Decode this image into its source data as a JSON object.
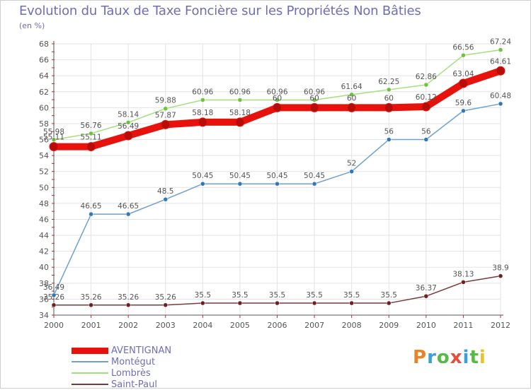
{
  "title": "Evolution du Taux de Taxe Foncière sur les Propriétés Non Bâties",
  "unit_label": "(en %)",
  "logo": {
    "letters": [
      "P",
      "r",
      "o",
      "x",
      "i",
      "t",
      "i"
    ],
    "colors": [
      "#e8832a",
      "#3aa0d8",
      "#58b848",
      "#e84c3d",
      "#3aa0d8",
      "#58b848",
      "#e8c22a"
    ]
  },
  "colors": {
    "grid": "#e3e3e3",
    "axis": "#555555",
    "tick": "#e02020",
    "text": "#555555"
  },
  "chart_data": {
    "type": "line",
    "title": "Evolution du Taux de Taxe Foncière sur les Propriétés Non Bâties",
    "ylabel": "(en %)",
    "xlabel": "",
    "ylim": [
      34,
      68
    ],
    "yticks": [
      34,
      36,
      38,
      40,
      42,
      44,
      46,
      48,
      50,
      52,
      54,
      56,
      58,
      60,
      62,
      64,
      66,
      68
    ],
    "grid": true,
    "legend_position": "bottom-left",
    "categories": [
      "2000",
      "2001",
      "2002",
      "2003",
      "2004",
      "2005",
      "2006",
      "2007",
      "2008",
      "2009",
      "2010",
      "2011",
      "2012"
    ],
    "series": [
      {
        "name": "AVENTIGNAN",
        "color": "#e8120c",
        "marker": "#b50e0a",
        "emphasis": true,
        "values": [
          55.11,
          55.11,
          56.49,
          57.87,
          58.18,
          58.18,
          60,
          60,
          60,
          60,
          60.12,
          63.04,
          64.61
        ],
        "labels": [
          "55.11",
          "55.11",
          "56.49",
          "57.87",
          "58.18",
          "58.18",
          "60",
          "60",
          "60",
          "60",
          "60.12",
          "63.04",
          "64.61"
        ]
      },
      {
        "name": "Montégut",
        "color": "#6fa1cc",
        "marker": "#2f78b9",
        "emphasis": false,
        "values": [
          36.49,
          46.65,
          46.65,
          48.5,
          50.45,
          50.45,
          50.45,
          50.45,
          52,
          56,
          56,
          59.6,
          60.48
        ],
        "labels": [
          "36.49",
          "46.65",
          "46.65",
          "48.5",
          "50.45",
          "50.45",
          "50.45",
          "50.45",
          "52",
          "56",
          "56",
          "59.6",
          "60.48"
        ]
      },
      {
        "name": "Lombrès",
        "color": "#a3e07c",
        "marker": "#6cc43a",
        "emphasis": false,
        "values": [
          55.98,
          56.76,
          58.14,
          59.88,
          60.96,
          60.96,
          60.96,
          60.96,
          61.64,
          62.25,
          62.86,
          66.56,
          67.24
        ],
        "labels": [
          "55.98",
          "56.76",
          "58.14",
          "59.88",
          "60.96",
          "60.96",
          "60.96",
          "60.96",
          "61.64",
          "62.25",
          "62.86",
          "66.56",
          "67.24"
        ]
      },
      {
        "name": "Saint-Paul",
        "color": "#7a3a3a",
        "marker": "#6e2020",
        "emphasis": false,
        "values": [
          35.26,
          35.26,
          35.26,
          35.26,
          35.5,
          35.5,
          35.5,
          35.5,
          35.5,
          35.5,
          36.37,
          38.13,
          38.9
        ],
        "labels": [
          "35.26",
          "35.26",
          "35.26",
          "35.26",
          "35.5",
          "35.5",
          "35.5",
          "35.5",
          "35.5",
          "35.5",
          "36.37",
          "38.13",
          "38.9"
        ]
      }
    ]
  }
}
